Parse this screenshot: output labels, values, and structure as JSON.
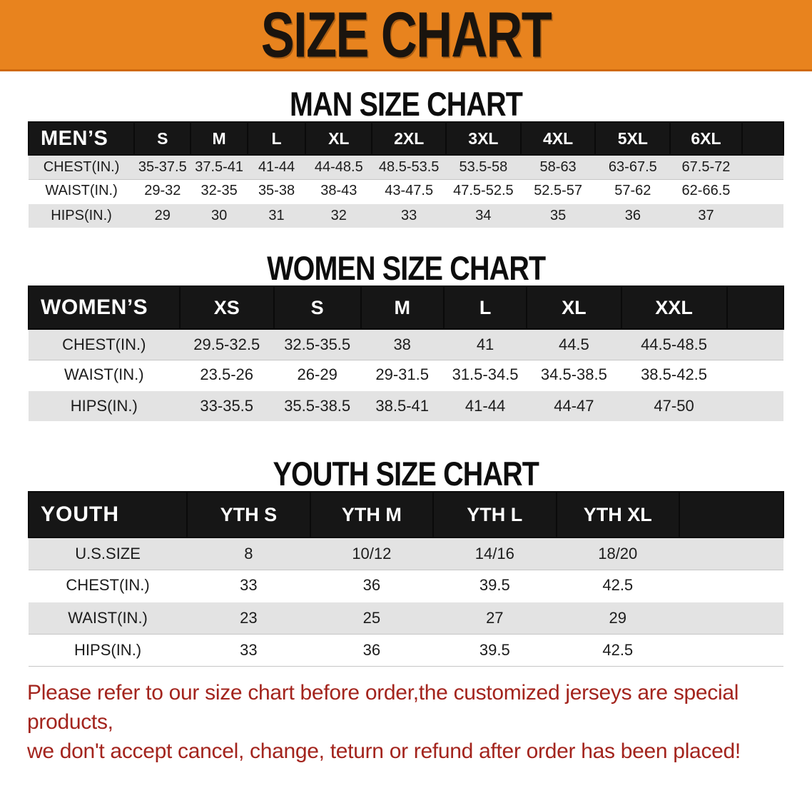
{
  "banner": {
    "title": "SIZE CHART",
    "bg_color": "#E8831E",
    "text_color": "#1a140e"
  },
  "sections": [
    {
      "title": "MAN SIZE CHART",
      "header_label": "MEN’S",
      "columns": [
        "S",
        "M",
        "L",
        "XL",
        "2XL",
        "3XL",
        "4XL",
        "5XL",
        "6XL"
      ],
      "col_widths": [
        "14%",
        "7.5%",
        "7.5%",
        "7.7%",
        "8.8%",
        "9.8%",
        "9.9%",
        "9.9%",
        "9.9%",
        "9.5%",
        "5.5%"
      ],
      "rows": [
        {
          "label": "CHEST(IN.)",
          "shade": "gray",
          "values": [
            "35-37.5",
            "37.5-41",
            "41-44",
            "44-48.5",
            "48.5-53.5",
            "53.5-58",
            "58-63",
            "63-67.5",
            "67.5-72"
          ]
        },
        {
          "label": "WAIST(IN.)",
          "shade": "white",
          "values": [
            "29-32",
            "32-35",
            "35-38",
            "38-43",
            "43-47.5",
            "47.5-52.5",
            "52.5-57",
            "57-62",
            "62-66.5"
          ]
        },
        {
          "label": "HIPS(IN.)",
          "shade": "gray",
          "values": [
            "29",
            "30",
            "31",
            "32",
            "33",
            "34",
            "35",
            "36",
            "37"
          ]
        }
      ]
    },
    {
      "title": "WOMEN SIZE CHART",
      "header_label": "WOMEN’S",
      "columns": [
        "XS",
        "S",
        "M",
        "L",
        "XL",
        "XXL"
      ],
      "col_widths": [
        "20%",
        "12.5%",
        "11.5%",
        "11%",
        "11%",
        "12.5%",
        "14%",
        "7.5%"
      ],
      "rows": [
        {
          "label": "CHEST(IN.)",
          "shade": "gray",
          "values": [
            "29.5-32.5",
            "32.5-35.5",
            "38",
            "41",
            "44.5",
            "44.5-48.5"
          ]
        },
        {
          "label": "WAIST(IN.)",
          "shade": "white",
          "values": [
            "23.5-26",
            "26-29",
            "29-31.5",
            "31.5-34.5",
            "34.5-38.5",
            "38.5-42.5"
          ]
        },
        {
          "label": "HIPS(IN.)",
          "shade": "gray",
          "values": [
            "33-35.5",
            "35.5-38.5",
            "38.5-41",
            "41-44",
            "44-47",
            "47-50"
          ]
        }
      ]
    },
    {
      "title": "YOUTH SIZE CHART",
      "header_label": "YOUTH",
      "columns": [
        "YTH S",
        "YTH M",
        "YTH L",
        "YTH XL"
      ],
      "col_widths": [
        "21%",
        "16.3%",
        "16.3%",
        "16.3%",
        "16.3%",
        "13.8%"
      ],
      "rows": [
        {
          "label": "U.S.SIZE",
          "shade": "gray",
          "values": [
            "8",
            "10/12",
            "14/16",
            "18/20"
          ]
        },
        {
          "label": "CHEST(IN.)",
          "shade": "white",
          "values": [
            "33",
            "36",
            "39.5",
            "42.5"
          ]
        },
        {
          "label": "WAIST(IN.)",
          "shade": "gray",
          "values": [
            "23",
            "25",
            "27",
            "29"
          ]
        },
        {
          "label": "HIPS(IN.)",
          "shade": "white",
          "values": [
            "33",
            "36",
            "39.5",
            "42.5"
          ]
        }
      ]
    }
  ],
  "footnote": {
    "line1": "Please refer to our size chart before order,the customized jerseys are special products,",
    "line2": "we don't accept cancel, change, teturn or refund after order has been placed!",
    "color": "#A3241D"
  }
}
